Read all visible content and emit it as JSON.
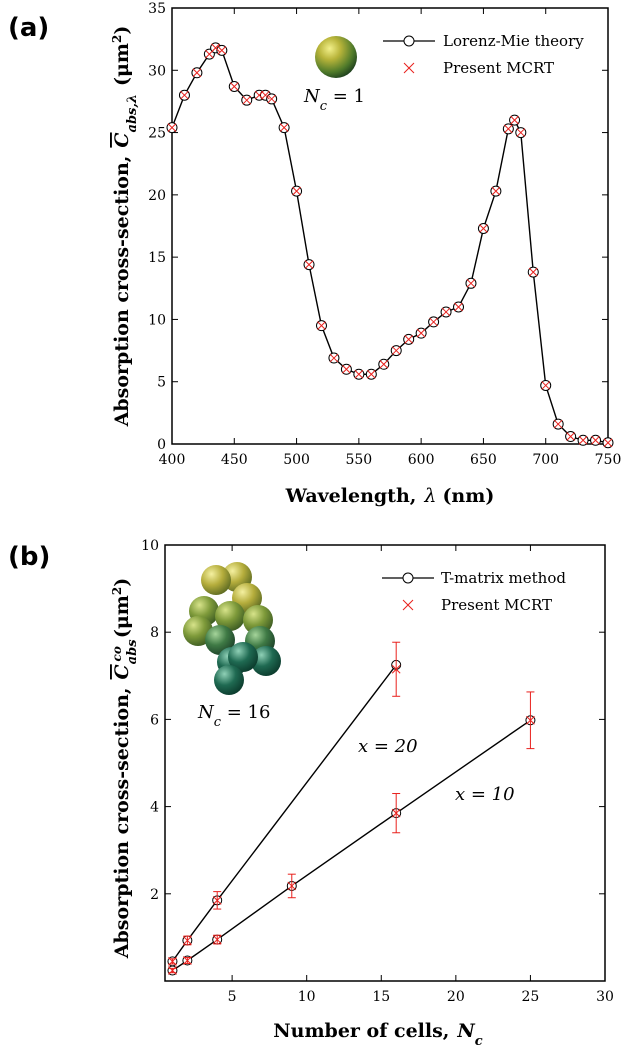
{
  "chart_data": [
    {
      "panel": "(a)",
      "type": "line",
      "xlabel": "Wavelength, λ (nm)",
      "ylabel": "Absorption cross-section, C̄abs,λ (μm²)",
      "xlim": [
        400,
        750
      ],
      "ylim": [
        0,
        35
      ],
      "xticks": [
        400,
        450,
        500,
        550,
        600,
        650,
        700,
        750
      ],
      "yticks": [
        0,
        5,
        10,
        15,
        20,
        25,
        30,
        35
      ],
      "annotation": "Nc = 1",
      "legend_position": "top-right",
      "series": [
        {
          "name": "Lorenz-Mie theory",
          "color": "#000000",
          "marker": "open-circle",
          "x": [
            400,
            410,
            420,
            430,
            435,
            440,
            450,
            460,
            470,
            475,
            480,
            490,
            500,
            510,
            520,
            530,
            540,
            550,
            560,
            570,
            580,
            590,
            600,
            610,
            620,
            630,
            640,
            650,
            660,
            670,
            675,
            680,
            690,
            700,
            710,
            720,
            730,
            740,
            750
          ],
          "y": [
            25.4,
            28.0,
            29.8,
            31.3,
            31.8,
            31.6,
            28.7,
            27.6,
            28.0,
            28.0,
            27.7,
            25.4,
            20.3,
            14.4,
            9.5,
            6.9,
            6.0,
            5.6,
            5.6,
            6.4,
            7.5,
            8.4,
            8.9,
            9.8,
            10.6,
            11.0,
            12.9,
            17.3,
            20.3,
            25.3,
            26.0,
            25.0,
            13.8,
            4.7,
            1.6,
            0.6,
            0.3,
            0.3,
            0.1
          ]
        },
        {
          "name": "Present MCRT",
          "color": "#e8201c",
          "marker": "x",
          "x": [
            400,
            410,
            420,
            430,
            435,
            440,
            450,
            460,
            470,
            475,
            480,
            490,
            500,
            510,
            520,
            530,
            540,
            550,
            560,
            570,
            580,
            590,
            600,
            610,
            620,
            630,
            640,
            650,
            660,
            670,
            675,
            680,
            690,
            700,
            710,
            720,
            730,
            740,
            750
          ],
          "y": [
            25.4,
            28.0,
            29.8,
            31.3,
            31.8,
            31.6,
            28.7,
            27.6,
            28.0,
            28.0,
            27.7,
            25.4,
            20.3,
            14.4,
            9.5,
            6.9,
            6.0,
            5.6,
            5.6,
            6.4,
            7.5,
            8.4,
            8.9,
            9.8,
            10.6,
            11.0,
            12.9,
            17.3,
            20.3,
            25.3,
            26.0,
            25.0,
            13.8,
            4.7,
            1.6,
            0.6,
            0.3,
            0.3,
            0.1
          ]
        }
      ]
    },
    {
      "panel": "(b)",
      "type": "line",
      "xlabel": "Number of cells, Nc",
      "ylabel": "Absorption cross-section, C̄abs^co (μm²)",
      "xlim": [
        0.5,
        30
      ],
      "ylim": [
        0,
        10
      ],
      "xticks": [
        5,
        10,
        15,
        20,
        25,
        30
      ],
      "yticks": [
        2,
        4,
        6,
        8,
        10
      ],
      "annotations": [
        "Nc = 16",
        "x = 20",
        "x = 10"
      ],
      "legend_position": "top-right",
      "series": [
        {
          "name": "T-matrix method",
          "group": "x = 20",
          "color": "#000000",
          "marker": "open-circle",
          "x": [
            1,
            2,
            4,
            16
          ],
          "y": [
            0.45,
            0.93,
            1.85,
            7.25
          ]
        },
        {
          "name": "T-matrix method",
          "group": "x = 10",
          "color": "#000000",
          "marker": "open-circle",
          "x": [
            1,
            2,
            4,
            9,
            16,
            25
          ],
          "y": [
            0.24,
            0.47,
            0.95,
            2.18,
            3.85,
            5.98
          ]
        },
        {
          "name": "Present MCRT",
          "group": "x = 20",
          "color": "#e8201c",
          "marker": "x",
          "x": [
            1,
            2,
            4,
            16
          ],
          "y": [
            0.45,
            0.93,
            1.85,
            7.15
          ],
          "err": [
            0.06,
            0.1,
            0.2,
            0.62
          ]
        },
        {
          "name": "Present MCRT",
          "group": "x = 10",
          "color": "#e8201c",
          "marker": "x",
          "x": [
            1,
            2,
            4,
            9,
            16,
            25
          ],
          "y": [
            0.24,
            0.47,
            0.95,
            2.18,
            3.85,
            5.98
          ],
          "err": [
            0.05,
            0.07,
            0.1,
            0.27,
            0.45,
            0.65
          ]
        }
      ]
    }
  ],
  "panel_a": {
    "label": "(a)",
    "xlabel_text": "Wavelength,",
    "xlabel_sym": "λ",
    "xlabel_unit": "(nm)",
    "ylabel_prefix": "Absorption cross-section,",
    "ylabel_sym": "C",
    "ylabel_sub": "abs,λ",
    "ylabel_unit": "(μm",
    "ylabel_unit_sup": "2",
    "ylabel_unit_close": ")",
    "legend_line": "Lorenz-Mie theory",
    "legend_cross": "Present MCRT",
    "annot_sym": "N",
    "annot_sub": "c",
    "annot_val": " = 1"
  },
  "panel_b": {
    "label": "(b)",
    "xlabel_text": "Number of cells,",
    "xlabel_sym": "N",
    "xlabel_sub": "c",
    "ylabel_prefix": "Absorption cross-section,",
    "ylabel_sym": "C",
    "ylabel_sub": "abs",
    "ylabel_sup": "co",
    "ylabel_unit": "(μm",
    "ylabel_unit_sup": "2",
    "ylabel_unit_close": ")",
    "legend_line": "T-matrix method",
    "legend_cross": "Present MCRT",
    "annot_sym": "N",
    "annot_sub": "c",
    "annot_val": " = 16",
    "x20": "x = 20",
    "x10": "x = 10"
  },
  "colors": {
    "line": "#000000",
    "mcrt": "#e8201c"
  },
  "icons": {
    "sphere": "green-sphere-icon",
    "cluster": "cell-cluster-icon"
  }
}
